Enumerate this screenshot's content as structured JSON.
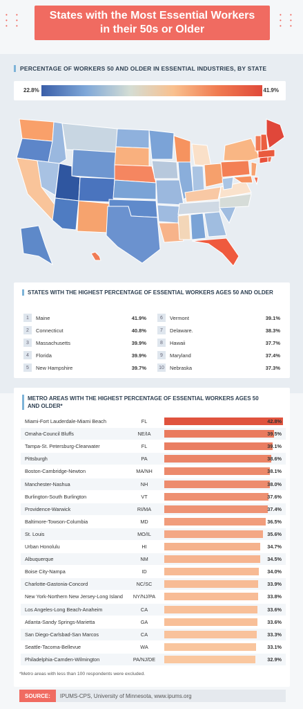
{
  "title": {
    "line1": "States with the Most Essential Workers",
    "line2": "in their 50s or Older"
  },
  "map_section": {
    "heading": "PERCENTAGE OF WORKERS 50 AND OLDER IN ESSENTIAL INDUSTRIES, BY STATE",
    "legend_min": "22.8%",
    "legend_max": "41.9%",
    "colors": {
      "low": "#3a5ea8",
      "mid": "#d4ddd4",
      "high": "#e04a3a"
    }
  },
  "top_states": {
    "heading": "STATES WITH THE HIGHEST PERCENTAGE OF ESSENTIAL WORKERS AGES 50 AND OLDER",
    "rows": [
      {
        "rank": "1",
        "state": "Maine",
        "pct": "41.9%"
      },
      {
        "rank": "2",
        "state": "Connecticut",
        "pct": "40.8%"
      },
      {
        "rank": "3",
        "state": "Massachusetts",
        "pct": "39.9%"
      },
      {
        "rank": "4",
        "state": "Florida",
        "pct": "39.9%"
      },
      {
        "rank": "5",
        "state": "New Hampshire",
        "pct": "39.7%"
      },
      {
        "rank": "6",
        "state": "Vermont",
        "pct": "39.1%"
      },
      {
        "rank": "7",
        "state": "Delaware.",
        "pct": "38.3%"
      },
      {
        "rank": "8",
        "state": "Hawaii",
        "pct": "37.7%"
      },
      {
        "rank": "9",
        "state": "Maryland",
        "pct": "37.4%"
      },
      {
        "rank": "10",
        "state": "Nebraska",
        "pct": "37.3%"
      }
    ]
  },
  "metro": {
    "heading_line1": "METRO AREAS WITH THE HIGHEST PERCENTAGE OF ESSENTIAL WORKERS AGES 50",
    "heading_line2": "AND OLDER*",
    "footnote": "*Metro areas with less than 100 respondents were excluded."
  },
  "chart_data": {
    "type": "bar",
    "title": "METRO AREAS WITH THE HIGHEST PERCENTAGE OF ESSENTIAL WORKERS AGES 50 AND OLDER*",
    "xlim": [
      0,
      42.8
    ],
    "categories": [
      "Miami-Fort Lauderdale-Miami Beach",
      "Omaha-Council Bluffs",
      "Tampa-St. Petersburg-Clearwater",
      "Pittsburgh",
      "Boston-Cambridge-Newton",
      "Manchester-Nashua",
      "Burlington-South Burlington",
      "Providence-Warwick",
      "Baltimore-Towson-Columbia",
      "St. Louis",
      "Urban Honolulu",
      "Albuquerque",
      "Boise City-Nampa",
      "Charlotte-Gastonia-Concord",
      "New York-Northern New Jersey-Long Island",
      "Los Angeles-Long Beach-Anaheim",
      "Atlanta-Sandy Springs-Marietta",
      "San Diego-Carlsbad-San Marcos",
      "Seattle-Tacoma-Bellevue",
      "Philadelphia-Camden-Wilmington"
    ],
    "states": [
      "FL",
      "NE/IA",
      "FL",
      "PA",
      "MA/NH",
      "NH",
      "VT",
      "RI/MA",
      "MD",
      "MO/IL",
      "HI",
      "NM",
      "ID",
      "NC/SC",
      "NY/NJ/PA",
      "CA",
      "GA",
      "CA",
      "WA",
      "PA/NJ/DE"
    ],
    "values": [
      42.8,
      39.5,
      39.1,
      38.6,
      38.1,
      38.0,
      37.6,
      37.4,
      36.5,
      35.6,
      34.7,
      34.5,
      34.0,
      33.9,
      33.8,
      33.6,
      33.6,
      33.3,
      33.1,
      32.9
    ],
    "labels": [
      "42.8%",
      "39.5%",
      "39.1%",
      "38.6%",
      "38.1%",
      "38.0%",
      "37.6%",
      "37.4%",
      "36.5%",
      "35.6%",
      "34.7%",
      "34.5%",
      "34.0%",
      "33.9%",
      "33.8%",
      "33.6%",
      "33.6%",
      "33.3%",
      "33.1%",
      "32.9%"
    ]
  },
  "source": {
    "label": "SOURCE:",
    "text": "IPUMS-CPS, University of Minnesota, www.ipums.org"
  }
}
